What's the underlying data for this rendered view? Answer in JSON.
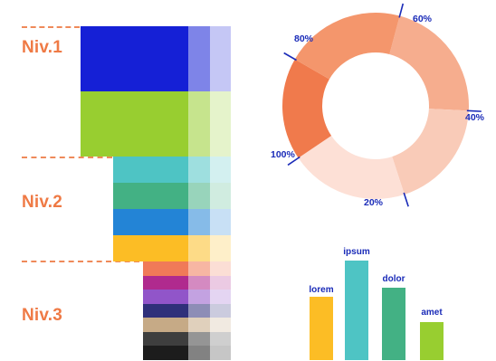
{
  "levels": {
    "niv1": "Niv.1",
    "niv2": "Niv.2",
    "niv3": "Niv.3"
  },
  "palette": {
    "niv1": [
      "#1520d6",
      "#98ce30"
    ],
    "niv2": [
      "#4ec4c4",
      "#43b184",
      "#2384d6",
      "#fcbd25"
    ],
    "niv3": [
      "#f07a58",
      "#b02a8e",
      "#9155c9",
      "#2f307a",
      "#c6aa86",
      "#3e3e3e",
      "#1c1c1c"
    ]
  },
  "accent_color": "#ef7a45",
  "label_color": "#1a2bb8",
  "chart_data": [
    {
      "type": "pie",
      "variant": "donut",
      "categories": [
        "60%",
        "40%",
        "20%",
        "100%",
        "80%"
      ],
      "values": [
        60,
        40,
        20,
        100,
        80
      ],
      "colors": [
        "#f6ad8e",
        "#f9cbb8",
        "#fde0d6",
        "#f07a4c",
        "#f4966c"
      ]
    },
    {
      "type": "bar",
      "categories": [
        "lorem",
        "ipsum",
        "dolor",
        "amet"
      ],
      "values": [
        70,
        110,
        80,
        42
      ],
      "colors": [
        "#fcbd25",
        "#4ec4c4",
        "#43b184",
        "#98ce30"
      ]
    }
  ]
}
